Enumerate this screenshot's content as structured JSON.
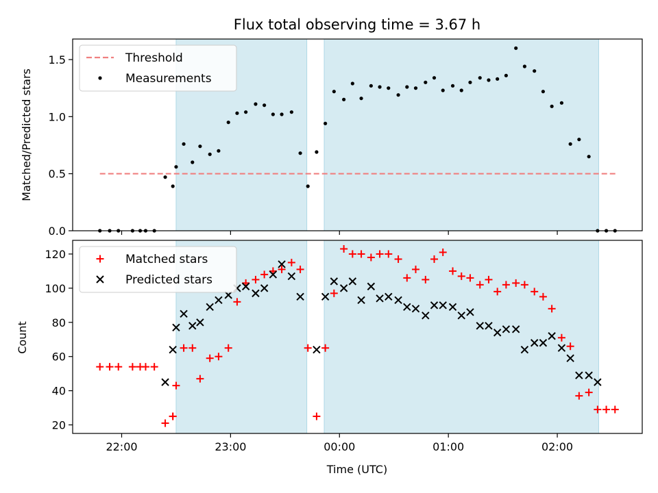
{
  "chart_data": [
    {
      "type": "scatter",
      "title": "Flux total observing time = 3.67 h",
      "ylabel": "Matched/Predicted stars",
      "xlabel": "",
      "x_unit": "hours since 00:00 UTC",
      "xlim": [
        -2.45,
        2.78
      ],
      "ylim": [
        0,
        1.68
      ],
      "yticks": [
        0,
        0.5,
        1.0,
        1.5
      ],
      "ytick_labels": [
        "0.0",
        "0.5",
        "1.0",
        "1.5"
      ],
      "xticks": [
        -2,
        -1,
        0,
        1,
        2
      ],
      "shaded_intervals": [
        [
          -1.5,
          -0.3
        ],
        [
          -0.14,
          2.38
        ]
      ],
      "threshold": {
        "name": "Threshold",
        "value": 0.5,
        "x_range": [
          -2.2,
          2.55
        ],
        "color": "#f08080"
      },
      "legend": {
        "placement": "top-left",
        "entries": [
          "Threshold",
          "Measurements"
        ]
      },
      "series": [
        {
          "name": "Measurements",
          "marker": "dot",
          "color": "#000000",
          "x": [
            -2.2,
            -2.11,
            -2.03,
            -1.9,
            -1.83,
            -1.78,
            -1.7,
            -1.6,
            -1.53,
            -1.5,
            -1.43,
            -1.35,
            -1.28,
            -1.19,
            -1.11,
            -1.02,
            -0.94,
            -0.86,
            -0.77,
            -0.69,
            -0.61,
            -0.53,
            -0.44,
            -0.36,
            -0.29,
            -0.21,
            -0.13,
            -0.05,
            0.04,
            0.12,
            0.2,
            0.29,
            0.37,
            0.45,
            0.54,
            0.62,
            0.7,
            0.79,
            0.87,
            0.95,
            1.04,
            1.12,
            1.2,
            1.29,
            1.37,
            1.45,
            1.53,
            1.62,
            1.7,
            1.79,
            1.87,
            1.95,
            2.04,
            2.12,
            2.2,
            2.29,
            2.37,
            2.45,
            2.53
          ],
          "y": [
            0.0,
            0.0,
            0.0,
            0.0,
            0.0,
            0.0,
            0.0,
            0.47,
            0.39,
            0.56,
            0.76,
            0.6,
            0.74,
            0.67,
            0.7,
            0.95,
            1.03,
            1.04,
            1.11,
            1.1,
            1.02,
            1.02,
            1.04,
            0.68,
            0.39,
            0.69,
            0.94,
            1.22,
            1.15,
            1.29,
            1.16,
            1.27,
            1.26,
            1.25,
            1.19,
            1.26,
            1.25,
            1.3,
            1.34,
            1.23,
            1.27,
            1.23,
            1.3,
            1.34,
            1.32,
            1.33,
            1.36,
            1.6,
            1.44,
            1.4,
            1.22,
            1.09,
            1.12,
            0.76,
            0.8,
            0.65,
            0.0,
            0.0,
            0.0
          ]
        }
      ]
    },
    {
      "type": "scatter",
      "title": "",
      "ylabel": "Count",
      "xlabel": "Time (UTC)",
      "x_unit": "hours since 00:00 UTC",
      "xlim": [
        -2.45,
        2.78
      ],
      "ylim": [
        15,
        128
      ],
      "yticks": [
        20,
        40,
        60,
        80,
        100,
        120
      ],
      "xticks": [
        -2,
        -1,
        0,
        1,
        2
      ],
      "xtick_labels": [
        "22:00",
        "23:00",
        "00:00",
        "01:00",
        "02:00"
      ],
      "shaded_intervals": [
        [
          -1.5,
          -0.3
        ],
        [
          -0.14,
          2.38
        ]
      ],
      "legend": {
        "placement": "top-left",
        "entries": [
          "Matched stars",
          "Predicted stars"
        ]
      },
      "series": [
        {
          "name": "Matched stars",
          "marker": "plus",
          "color": "#ff0000",
          "x": [
            -2.2,
            -2.11,
            -2.03,
            -1.9,
            -1.83,
            -1.78,
            -1.7,
            -1.6,
            -1.53,
            -1.43,
            -1.28,
            -1.35,
            -1.19,
            -1.11,
            -1.02,
            -0.94,
            -0.86,
            -0.77,
            -0.69,
            -0.61,
            -0.53,
            -0.44,
            -0.36,
            -0.29,
            -0.21,
            -0.13,
            -0.05,
            0.04,
            0.12,
            0.2,
            0.29,
            0.37,
            0.45,
            0.54,
            0.62,
            0.7,
            0.79,
            0.87,
            0.95,
            1.04,
            1.12,
            1.2,
            1.29,
            1.37,
            1.45,
            1.53,
            1.62,
            1.7,
            1.79,
            1.87,
            1.95,
            2.04,
            2.12,
            2.2,
            2.29,
            2.37,
            2.45,
            2.53,
            -1.53,
            -1.5
          ],
          "y": [
            54,
            54,
            54,
            54,
            54,
            54,
            54,
            21,
            25,
            65,
            47,
            65,
            59,
            60,
            65,
            92,
            103,
            105,
            108,
            110,
            111,
            115,
            111,
            65,
            25,
            65,
            97,
            123,
            120,
            120,
            118,
            120,
            120,
            117,
            106,
            111,
            105,
            117,
            121,
            110,
            107,
            106,
            102,
            105,
            98,
            102,
            103,
            102,
            98,
            95,
            88,
            71,
            66,
            37,
            39,
            29,
            29,
            29,
            25,
            43
          ]
        },
        {
          "name": "Predicted stars",
          "marker": "x",
          "color": "#000000",
          "x": [
            -1.6,
            -1.53,
            -1.5,
            -1.43,
            -1.35,
            -1.28,
            -1.19,
            -1.11,
            -1.02,
            -0.94,
            -0.86,
            -0.77,
            -0.69,
            -0.61,
            -0.53,
            -0.44,
            -0.36,
            -0.21,
            -0.13,
            -0.05,
            0.04,
            0.12,
            0.2,
            0.29,
            0.37,
            0.45,
            0.54,
            0.62,
            0.7,
            0.79,
            0.87,
            0.95,
            1.04,
            1.12,
            1.2,
            1.29,
            1.37,
            1.45,
            1.53,
            1.62,
            1.7,
            1.79,
            1.87,
            1.95,
            2.04,
            2.12,
            2.2,
            2.29,
            2.37
          ],
          "y": [
            45,
            64,
            77,
            85,
            78,
            80,
            89,
            93,
            96,
            100,
            101,
            97,
            100,
            108,
            114,
            107,
            95,
            64,
            95,
            104,
            100,
            104,
            93,
            101,
            94,
            95,
            93,
            89,
            88,
            84,
            90,
            90,
            89,
            84,
            86,
            78,
            78,
            74,
            76,
            76,
            64,
            68,
            68,
            72,
            65,
            59,
            49,
            49,
            45
          ]
        }
      ]
    }
  ]
}
